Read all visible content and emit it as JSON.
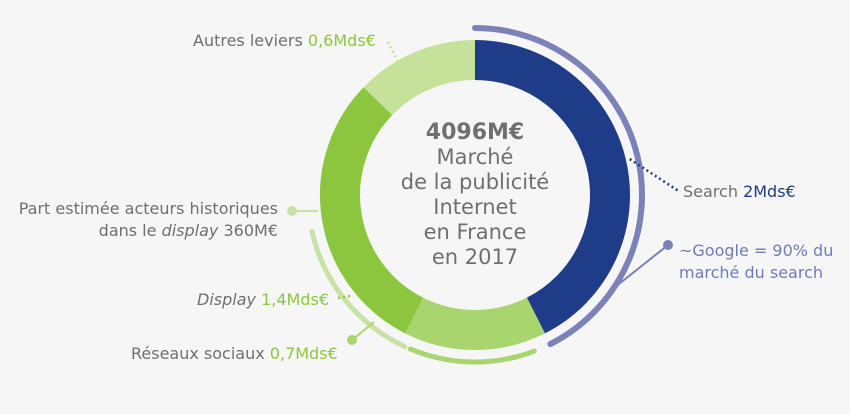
{
  "colors": {
    "search": "#1f3c88",
    "display": "#8cc63f",
    "reseaux": "#a9d56e",
    "autres": "#c5e19a",
    "google": "#7b82b8",
    "historiques": "#c7e2a4",
    "text": "#6f6f6f"
  },
  "chart_data": {
    "type": "pie",
    "total": "4096M€",
    "center_lines": [
      "Marché",
      "de la publicité",
      "Internet",
      "en France",
      "en 2017"
    ],
    "slices": [
      {
        "name": "Search",
        "value_label": "2Mds€",
        "value": 2.0
      },
      {
        "name": "Réseaux sociaux",
        "value_label": "0,7Mds€",
        "value": 0.7
      },
      {
        "name": "Display",
        "value_label": "1,4Mds€",
        "value": 1.4
      },
      {
        "name": "Autres leviers",
        "value_label": "0,6Mds€",
        "value": 0.6
      }
    ],
    "annotations": [
      {
        "text_lines": [
          "~Google = 90% du",
          "marché du search"
        ],
        "share_of_search": 0.9
      },
      {
        "text_before": "Part estimée acteurs historiques",
        "text_line2_a": "dans le",
        "text_line2_italic": "display",
        "text_line2_b": "360M€",
        "value_m": 360
      }
    ]
  }
}
